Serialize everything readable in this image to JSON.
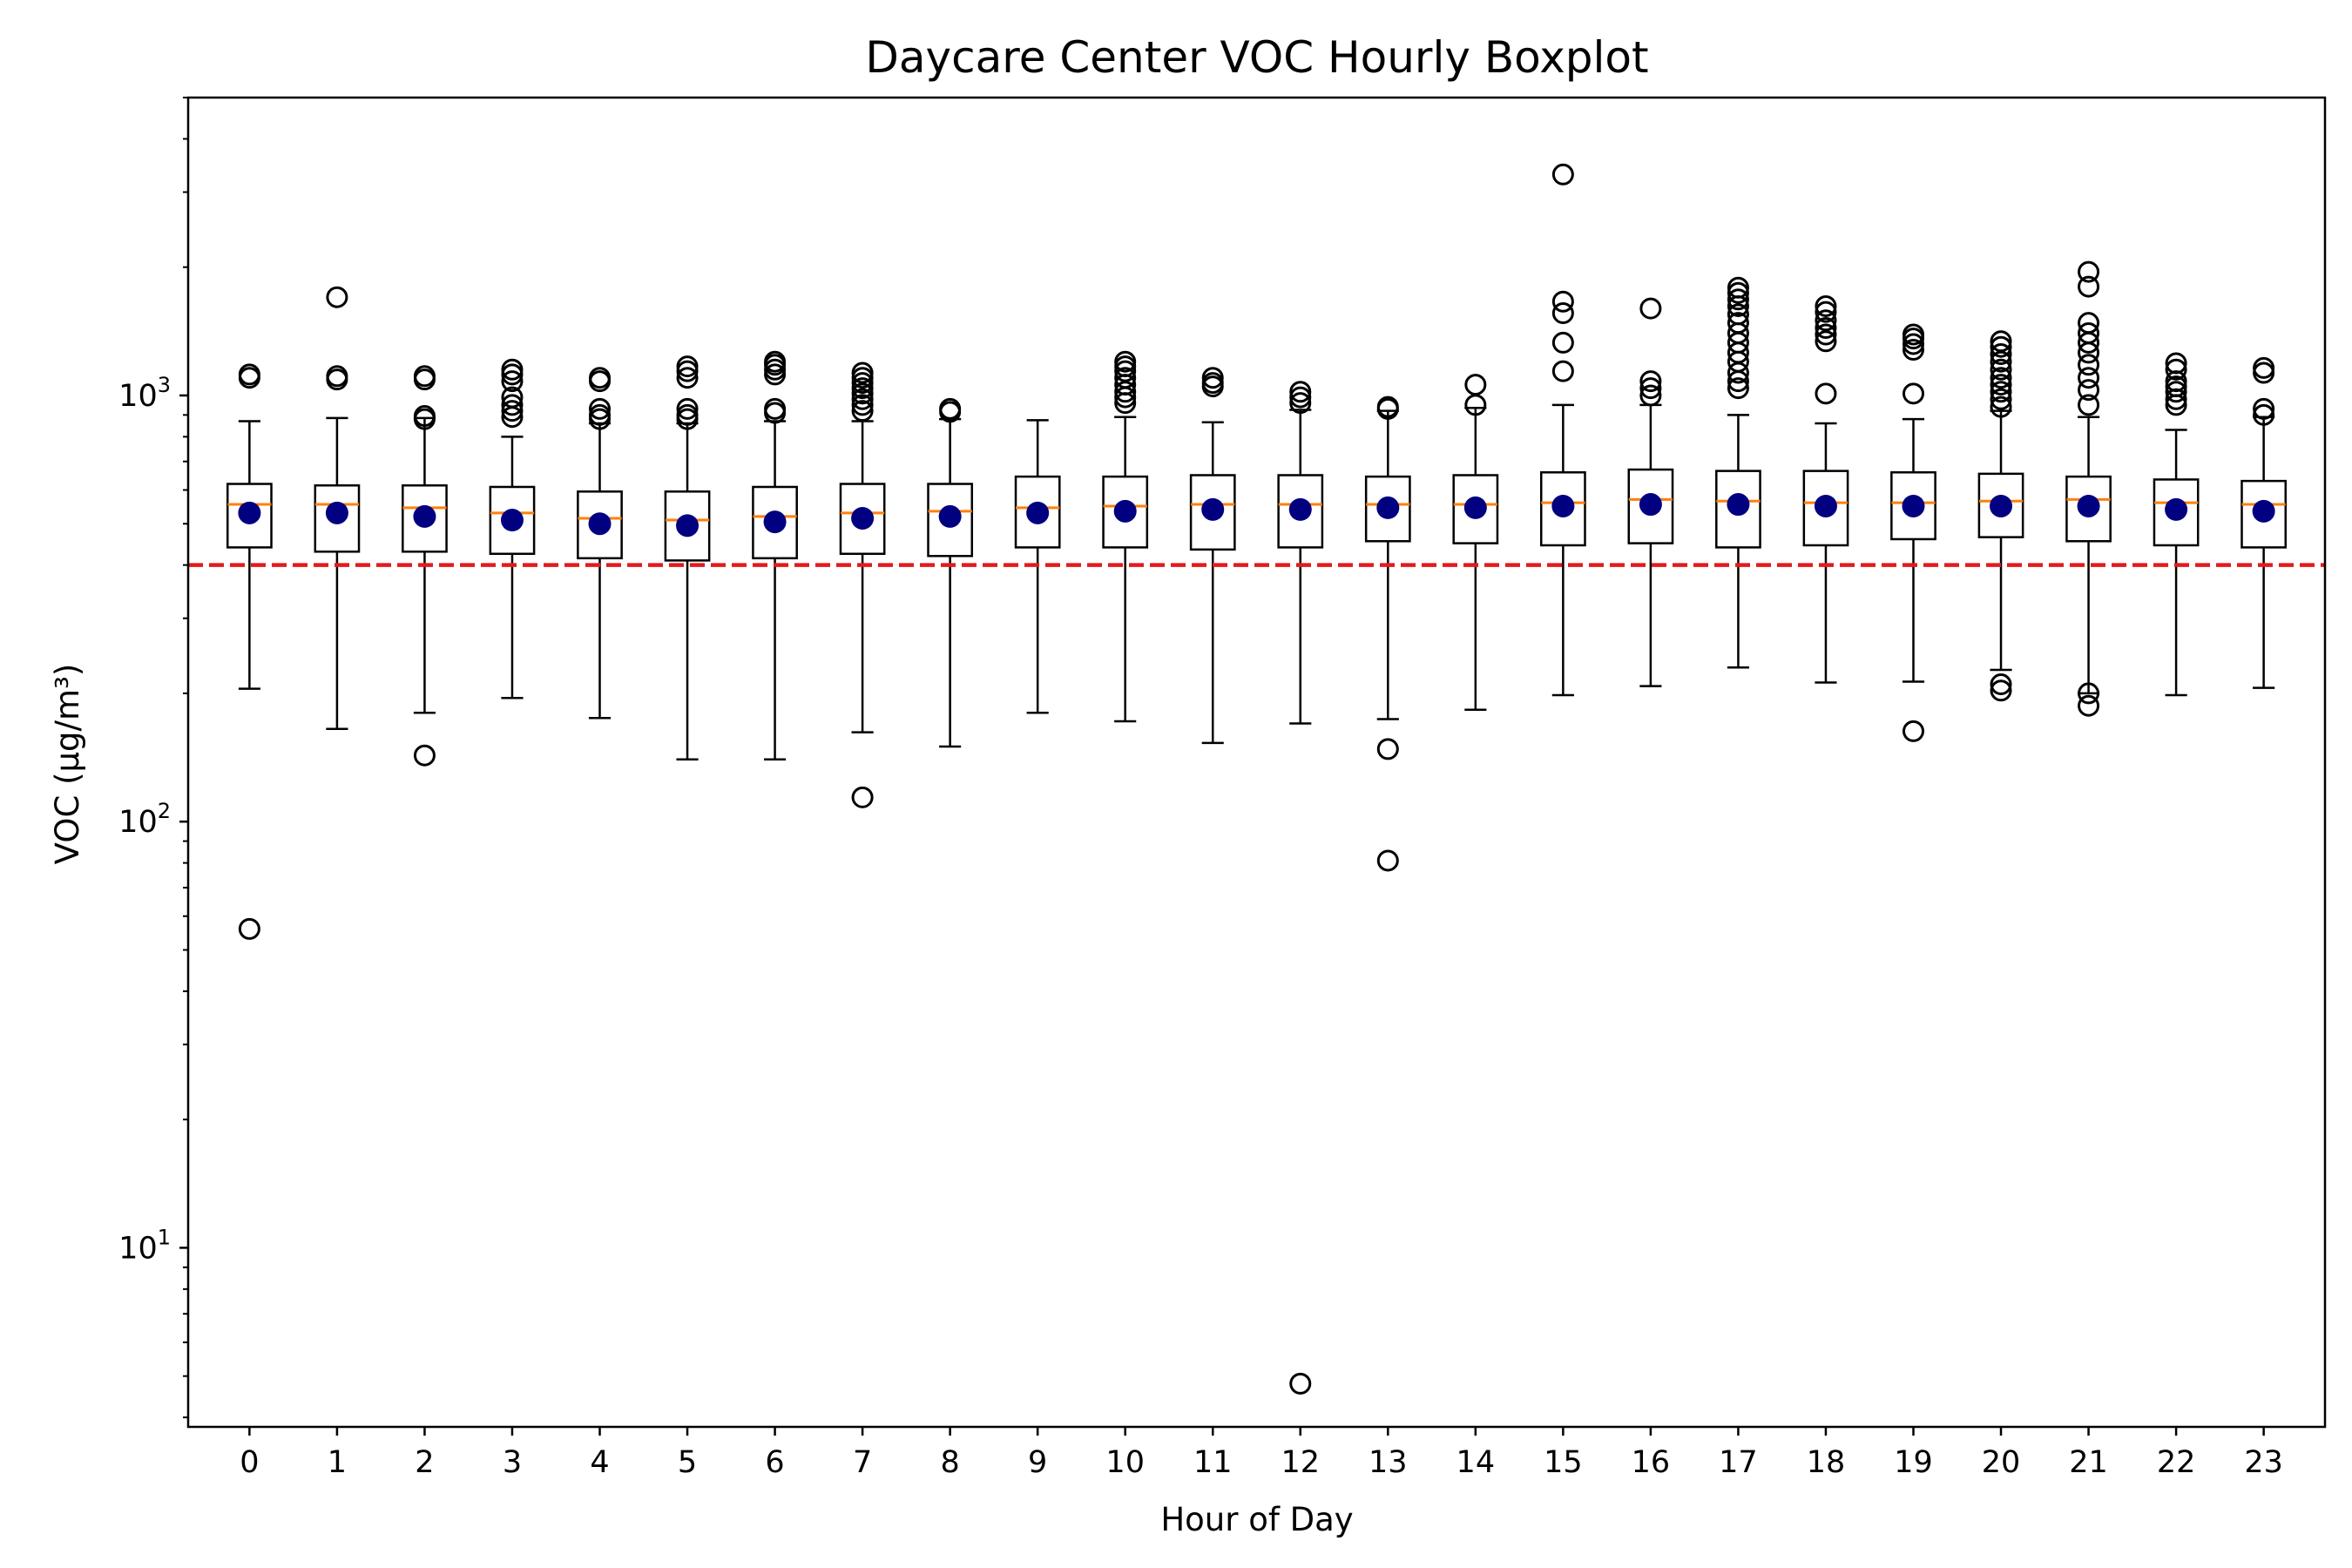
{
  "chart_data": {
    "type": "boxplot",
    "title": "Daycare Center VOC Hourly Boxplot",
    "xlabel": "Hour of Day",
    "ylabel": "VOC (μg/m³)",
    "yscale": "log",
    "ylim": [
      3.8,
      5000
    ],
    "y_ticks": [
      {
        "value": 10,
        "base": "10",
        "exp": "1"
      },
      {
        "value": 100,
        "base": "10",
        "exp": "2"
      },
      {
        "value": 1000,
        "base": "10",
        "exp": "3"
      }
    ],
    "grid": false,
    "reference_line": {
      "value": 400,
      "color": "#e41a1c",
      "style": "dashed"
    },
    "colors": {
      "box": "#000000",
      "median": "#ff7f0e",
      "mean": "#000080",
      "reference": "#e41a1c"
    },
    "categories": [
      "0",
      "1",
      "2",
      "3",
      "4",
      "5",
      "6",
      "7",
      "8",
      "9",
      "10",
      "11",
      "12",
      "13",
      "14",
      "15",
      "16",
      "17",
      "18",
      "19",
      "20",
      "21",
      "22",
      "23"
    ],
    "boxes": [
      {
        "hour": "0",
        "whislo": 205,
        "q1": 440,
        "med": 555,
        "q3": 620,
        "whishi": 870,
        "mean": 530,
        "fliers": [
          56,
          1100,
          1120
        ]
      },
      {
        "hour": "1",
        "whislo": 165,
        "q1": 430,
        "med": 555,
        "q3": 615,
        "whishi": 885,
        "mean": 530,
        "fliers": [
          1090,
          1110,
          1700
        ]
      },
      {
        "hour": "2",
        "whislo": 180,
        "q1": 430,
        "med": 545,
        "q3": 615,
        "whishi": 885,
        "mean": 520,
        "fliers": [
          143,
          880,
          895,
          1090,
          1110
        ]
      },
      {
        "hour": "3",
        "whislo": 195,
        "q1": 425,
        "med": 530,
        "q3": 610,
        "whishi": 800,
        "mean": 510,
        "fliers": [
          890,
          920,
          950,
          990,
          1080,
          1120,
          1150
        ]
      },
      {
        "hour": "4",
        "whislo": 175,
        "q1": 415,
        "med": 515,
        "q3": 595,
        "whishi": 860,
        "mean": 500,
        "fliers": [
          880,
          900,
          930,
          1080,
          1100
        ]
      },
      {
        "hour": "5",
        "whislo": 140,
        "q1": 410,
        "med": 510,
        "q3": 595,
        "whishi": 860,
        "mean": 495,
        "fliers": [
          880,
          900,
          930,
          1100,
          1140,
          1170
        ]
      },
      {
        "hour": "6",
        "whislo": 140,
        "q1": 415,
        "med": 520,
        "q3": 610,
        "whishi": 870,
        "mean": 505,
        "fliers": [
          910,
          930,
          1120,
          1150,
          1180,
          1200
        ]
      },
      {
        "hour": "7",
        "whislo": 162,
        "q1": 425,
        "med": 530,
        "q3": 620,
        "whishi": 870,
        "mean": 515,
        "fliers": [
          114,
          920,
          950,
          980,
          1010,
          1040,
          1070,
          1100,
          1130
        ]
      },
      {
        "hour": "8",
        "whislo": 150,
        "q1": 420,
        "med": 535,
        "q3": 620,
        "whishi": 880,
        "mean": 520,
        "fliers": [
          915,
          930
        ]
      },
      {
        "hour": "9",
        "whislo": 180,
        "q1": 440,
        "med": 545,
        "q3": 645,
        "whishi": 875,
        "mean": 530,
        "fliers": []
      },
      {
        "hour": "10",
        "whislo": 172,
        "q1": 440,
        "med": 550,
        "q3": 645,
        "whishi": 890,
        "mean": 535,
        "fliers": [
          960,
          990,
          1020,
          1060,
          1100,
          1140,
          1170,
          1200
        ]
      },
      {
        "hour": "11",
        "whislo": 153,
        "q1": 435,
        "med": 555,
        "q3": 650,
        "whishi": 865,
        "mean": 540,
        "fliers": [
          1050,
          1070,
          1100
        ]
      },
      {
        "hour": "12",
        "whislo": 170,
        "q1": 440,
        "med": 555,
        "q3": 650,
        "whishi": 925,
        "mean": 540,
        "fliers": [
          4.8,
          960,
          990,
          1020
        ]
      },
      {
        "hour": "13",
        "whislo": 174,
        "q1": 455,
        "med": 555,
        "q3": 645,
        "whishi": 920,
        "mean": 545,
        "fliers": [
          81,
          148,
          930,
          940
        ]
      },
      {
        "hour": "14",
        "whislo": 183,
        "q1": 450,
        "med": 555,
        "q3": 650,
        "whishi": 935,
        "mean": 545,
        "fliers": [
          950,
          1060
        ]
      },
      {
        "hour": "15",
        "whislo": 198,
        "q1": 445,
        "med": 560,
        "q3": 660,
        "whishi": 950,
        "mean": 550,
        "fliers": [
          1140,
          1330,
          1560,
          1660,
          3300
        ]
      },
      {
        "hour": "16",
        "whislo": 208,
        "q1": 450,
        "med": 570,
        "q3": 670,
        "whishi": 950,
        "mean": 555,
        "fliers": [
          1000,
          1040,
          1080,
          1600
        ]
      },
      {
        "hour": "17",
        "whislo": 230,
        "q1": 440,
        "med": 565,
        "q3": 665,
        "whishi": 900,
        "mean": 555,
        "fliers": [
          1040,
          1080,
          1130,
          1200,
          1260,
          1330,
          1400,
          1480,
          1550,
          1620,
          1680,
          1740,
          1790
        ]
      },
      {
        "hour": "18",
        "whislo": 212,
        "q1": 445,
        "med": 560,
        "q3": 665,
        "whishi": 860,
        "mean": 550,
        "fliers": [
          1010,
          1340,
          1390,
          1440,
          1500,
          1570,
          1620
        ]
      },
      {
        "hour": "19",
        "whislo": 213,
        "q1": 460,
        "med": 560,
        "q3": 660,
        "whishi": 880,
        "mean": 550,
        "fliers": [
          163,
          1010,
          1280,
          1320,
          1360,
          1390
        ]
      },
      {
        "hour": "20",
        "whislo": 227,
        "q1": 465,
        "med": 565,
        "q3": 655,
        "whishi": 920,
        "mean": 550,
        "fliers": [
          203,
          210,
          940,
          980,
          1020,
          1060,
          1100,
          1150,
          1200,
          1250,
          1300,
          1340
        ]
      },
      {
        "hour": "21",
        "whislo": 200,
        "q1": 455,
        "med": 570,
        "q3": 645,
        "whishi": 890,
        "mean": 550,
        "fliers": [
          187,
          200,
          950,
          1030,
          1100,
          1180,
          1260,
          1330,
          1400,
          1480,
          1800,
          1950
        ]
      },
      {
        "hour": "22",
        "whislo": 198,
        "q1": 445,
        "med": 560,
        "q3": 635,
        "whishi": 830,
        "mean": 540,
        "fliers": [
          950,
          980,
          1020,
          1050,
          1080,
          1150,
          1190
        ]
      },
      {
        "hour": "23",
        "whislo": 206,
        "q1": 440,
        "med": 555,
        "q3": 630,
        "whishi": 890,
        "mean": 535,
        "fliers": [
          900,
          930,
          1130,
          1160
        ]
      }
    ]
  }
}
